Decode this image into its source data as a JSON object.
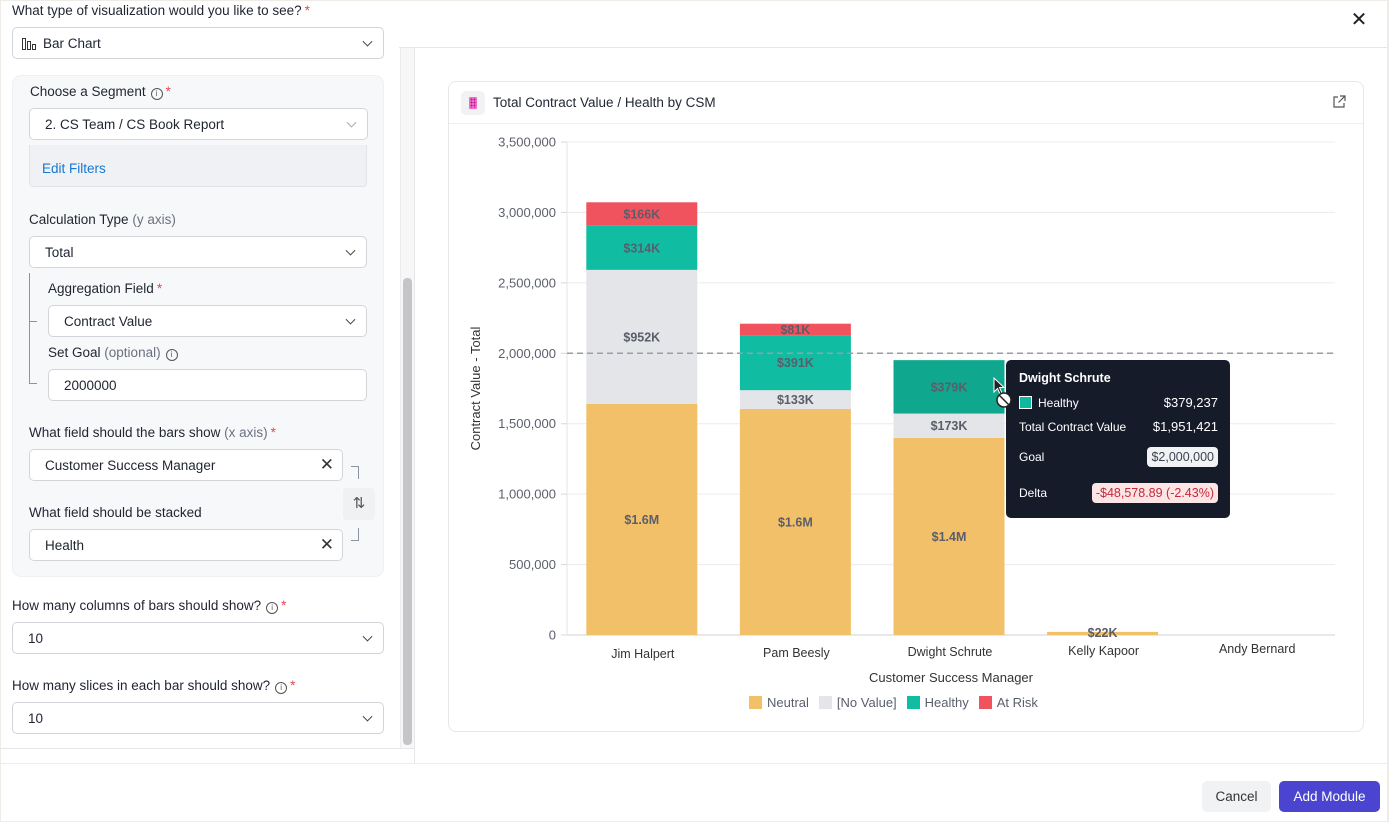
{
  "dialog": {
    "close_label": "✕"
  },
  "form": {
    "viz_type": {
      "label": "What type of visualization would you like to see?",
      "required": "*",
      "value": "Bar Chart"
    },
    "segment": {
      "label": "Choose a Segment",
      "required": "*",
      "value": "2. CS Team / CS Book Report",
      "edit_filters": "Edit Filters"
    },
    "calc_type": {
      "label": "Calculation Type",
      "hint": "(y axis)",
      "value": "Total"
    },
    "aggregation": {
      "label": "Aggregation Field",
      "required": "*",
      "value": "Contract Value"
    },
    "goal": {
      "label": "Set Goal",
      "hint": "(optional)",
      "value": "2000000"
    },
    "x_field": {
      "label": "What field should the bars show",
      "hint": "(x axis)",
      "required": "*",
      "value": "Customer Success Manager"
    },
    "stack_field": {
      "label": "What field should be stacked",
      "value": "Health"
    },
    "columns": {
      "label": "How many columns of bars should show?",
      "required": "*",
      "value": "10"
    },
    "slices": {
      "label": "How many slices in each bar should show?",
      "required": "*",
      "value": "10"
    }
  },
  "card": {
    "title": "Total Contract Value / Health by CSM"
  },
  "chart_data": {
    "type": "bar",
    "stacked": true,
    "title": "Total Contract Value / Health by CSM",
    "xlabel": "Customer Success Manager",
    "ylabel": "Contract Value - Total",
    "ylim": [
      0,
      3500000
    ],
    "yticks": [
      0,
      500000,
      1000000,
      1500000,
      2000000,
      2500000,
      3000000,
      3500000
    ],
    "ytick_labels": [
      "0",
      "500,000",
      "1,000,000",
      "1,500,000",
      "2,000,000",
      "2,500,000",
      "3,000,000",
      "3,500,000"
    ],
    "grid": true,
    "goal_line": 2000000,
    "legend_position": "bottom",
    "categories": [
      "Jim Halpert",
      "Pam Beesly",
      "Dwight Schrute",
      "Kelly Kapoor",
      "Andy Bernard"
    ],
    "series": [
      {
        "name": "Neutral",
        "color": "#f3c06a",
        "values": [
          1640000,
          1605000,
          1399184,
          22000,
          0
        ],
        "labels": [
          "$1.6M",
          "$1.6M",
          "$1.4M",
          "$22K",
          ""
        ]
      },
      {
        "name": "[No Value]",
        "color": "#e4e5e9",
        "values": [
          952000,
          133000,
          173000,
          0,
          0
        ],
        "labels": [
          "$952K",
          "$133K",
          "$173K",
          "",
          ""
        ]
      },
      {
        "name": "Healthy",
        "color": "#10bda3",
        "values": [
          314000,
          391000,
          379237,
          0,
          0
        ],
        "labels": [
          "$314K",
          "$391K",
          "$379K",
          "",
          ""
        ]
      },
      {
        "name": "At Risk",
        "color": "#f1535e",
        "values": [
          166000,
          81000,
          0,
          0,
          0
        ],
        "labels": [
          "$166K",
          "$81K",
          "",
          "",
          ""
        ]
      }
    ]
  },
  "tooltip": {
    "title": "Dwight Schrute",
    "series_name": "Healthy",
    "series_value": "$379,237",
    "total_label": "Total Contract Value",
    "total_value": "$1,951,421",
    "goal_label": "Goal",
    "goal_value": "$2,000,000",
    "delta_label": "Delta",
    "delta_value": "-$48,578.89 (-2.43%)"
  },
  "footer": {
    "cancel": "Cancel",
    "add": "Add Module"
  }
}
